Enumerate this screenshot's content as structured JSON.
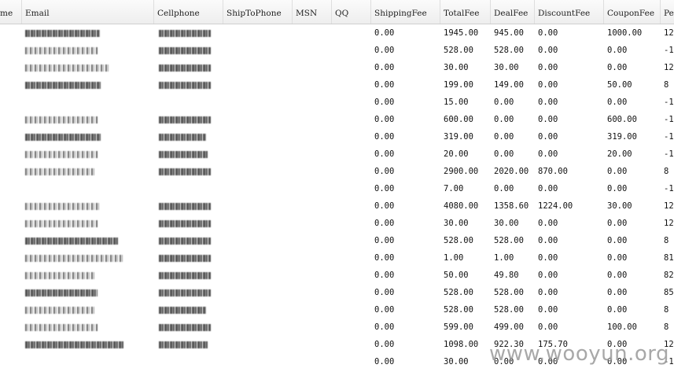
{
  "table": {
    "columns": [
      "me",
      "Email",
      "Cellphone",
      "ShipToPhone",
      "MSN",
      "QQ",
      "ShippingFee",
      "TotalFee",
      "DealFee",
      "DiscountFee",
      "CouponFee",
      "Pe"
    ],
    "rows": [
      {
        "shipping": "0.00",
        "total": "1945.00",
        "deal": "945.00",
        "discount": "0.00",
        "coupon": "1000.00",
        "pe": "12"
      },
      {
        "shipping": "0.00",
        "total": "528.00",
        "deal": "528.00",
        "discount": "0.00",
        "coupon": "0.00",
        "pe": "-1"
      },
      {
        "shipping": "0.00",
        "total": "30.00",
        "deal": "30.00",
        "discount": "0.00",
        "coupon": "0.00",
        "pe": "12"
      },
      {
        "shipping": "0.00",
        "total": "199.00",
        "deal": "149.00",
        "discount": "0.00",
        "coupon": "50.00",
        "pe": "8"
      },
      {
        "shipping": "0.00",
        "total": "15.00",
        "deal": "0.00",
        "discount": "0.00",
        "coupon": "0.00",
        "pe": "-1"
      },
      {
        "shipping": "0.00",
        "total": "600.00",
        "deal": "0.00",
        "discount": "0.00",
        "coupon": "600.00",
        "pe": "-1"
      },
      {
        "shipping": "0.00",
        "total": "319.00",
        "deal": "0.00",
        "discount": "0.00",
        "coupon": "319.00",
        "pe": "-1"
      },
      {
        "shipping": "0.00",
        "total": "20.00",
        "deal": "0.00",
        "discount": "0.00",
        "coupon": "20.00",
        "pe": "-1"
      },
      {
        "shipping": "0.00",
        "total": "2900.00",
        "deal": "2020.00",
        "discount": "870.00",
        "coupon": "0.00",
        "pe": "8"
      },
      {
        "shipping": "0.00",
        "total": "7.00",
        "deal": "0.00",
        "discount": "0.00",
        "coupon": "0.00",
        "pe": "-1"
      },
      {
        "shipping": "0.00",
        "total": "4080.00",
        "deal": "1358.60",
        "discount": "1224.00",
        "coupon": "30.00",
        "pe": "12"
      },
      {
        "shipping": "0.00",
        "total": "30.00",
        "deal": "30.00",
        "discount": "0.00",
        "coupon": "0.00",
        "pe": "12"
      },
      {
        "shipping": "0.00",
        "total": "528.00",
        "deal": "528.00",
        "discount": "0.00",
        "coupon": "0.00",
        "pe": "8"
      },
      {
        "shipping": "0.00",
        "total": "1.00",
        "deal": "1.00",
        "discount": "0.00",
        "coupon": "0.00",
        "pe": "81"
      },
      {
        "shipping": "0.00",
        "total": "50.00",
        "deal": "49.80",
        "discount": "0.00",
        "coupon": "0.00",
        "pe": "82"
      },
      {
        "shipping": "0.00",
        "total": "528.00",
        "deal": "528.00",
        "discount": "0.00",
        "coupon": "0.00",
        "pe": "85"
      },
      {
        "shipping": "0.00",
        "total": "528.00",
        "deal": "528.00",
        "discount": "0.00",
        "coupon": "0.00",
        "pe": "8"
      },
      {
        "shipping": "0.00",
        "total": "599.00",
        "deal": "499.00",
        "discount": "0.00",
        "coupon": "100.00",
        "pe": "8"
      },
      {
        "shipping": "0.00",
        "total": "1098.00",
        "deal": "922.30",
        "discount": "175.70",
        "coupon": "0.00",
        "pe": "12"
      },
      {
        "shipping": "0.00",
        "total": "30.00",
        "deal": "0.00",
        "discount": "0.00",
        "coupon": "0.00",
        "pe": "-1"
      }
    ]
  },
  "watermark": "www.wooyun.org",
  "colors": {
    "header_bg": "#eeeeee",
    "watermark": "#9a9a9a"
  }
}
